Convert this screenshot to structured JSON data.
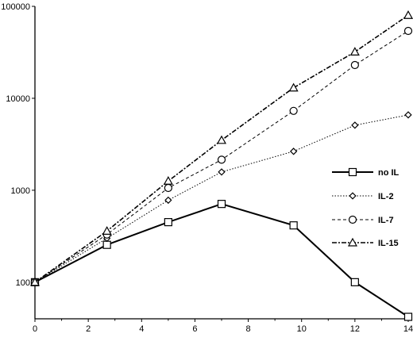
{
  "chart_data": {
    "type": "line",
    "title": "",
    "xlabel": "",
    "ylabel": "",
    "x_scale": "linear",
    "y_scale": "log",
    "xlim": [
      0,
      14
    ],
    "ylim": [
      40,
      100000
    ],
    "x_ticks": [
      0,
      2,
      4,
      6,
      8,
      10,
      12,
      14
    ],
    "x_tick_labels": [
      "0",
      "2",
      "4",
      "6",
      "8",
      "10",
      "12",
      "14"
    ],
    "y_ticks": [
      100,
      1000,
      10000,
      100000
    ],
    "y_tick_labels": [
      "100",
      "1000",
      "10000",
      "100000"
    ],
    "grid": false,
    "legend_position": "right",
    "series": [
      {
        "name": "no IL",
        "marker": "square",
        "dash": "solid",
        "stroke_width": 2,
        "x": [
          0,
          2.7,
          5,
          7,
          9.7,
          12,
          14
        ],
        "y": [
          100,
          255,
          450,
          710,
          415,
          100,
          42
        ]
      },
      {
        "name": "IL-2",
        "marker": "diamond",
        "dash": "dotted",
        "stroke_width": 1,
        "x": [
          0,
          2.7,
          5,
          7,
          9.7,
          12,
          14
        ],
        "y": [
          100,
          300,
          780,
          1580,
          2650,
          5100,
          6600
        ]
      },
      {
        "name": "IL-7",
        "marker": "circle",
        "dash": "dashed",
        "stroke_width": 1,
        "x": [
          0,
          2.7,
          5,
          7,
          9.7,
          12,
          14
        ],
        "y": [
          100,
          330,
          1060,
          2150,
          7300,
          23000,
          54000
        ]
      },
      {
        "name": "IL-15",
        "marker": "triangle",
        "dash": "dashdot",
        "stroke_width": 1.6,
        "x": [
          0,
          2.7,
          5,
          7,
          9.7,
          12,
          14
        ],
        "y": [
          100,
          360,
          1260,
          3500,
          13000,
          32000,
          80000
        ]
      }
    ]
  }
}
